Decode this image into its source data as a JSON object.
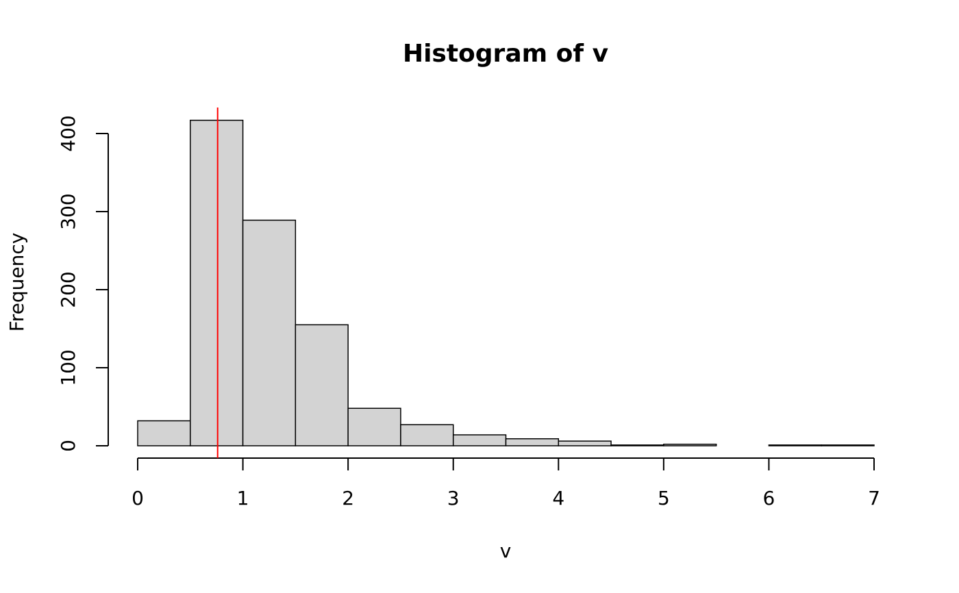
{
  "chart_data": {
    "type": "histogram",
    "title": "Histogram of v",
    "x_label": "v",
    "y_label": "Frequency",
    "bins": [
      0,
      0.5,
      1,
      1.5,
      2,
      2.5,
      3,
      3.5,
      4,
      4.5,
      5,
      5.5,
      6,
      6.5,
      7
    ],
    "values": [
      32,
      417,
      289,
      155,
      48,
      27,
      14,
      9,
      6,
      1,
      2,
      0,
      1,
      1
    ],
    "color": "#d3d3d3",
    "xlim": [
      0,
      7
    ],
    "xticks": [
      0,
      1,
      2,
      3,
      4,
      5,
      6,
      7
    ],
    "ylim": [
      0,
      400
    ],
    "yticks": [
      0,
      100,
      200,
      300,
      400
    ],
    "vline": {
      "value": 0.76,
      "color": "#ff0000"
    }
  }
}
